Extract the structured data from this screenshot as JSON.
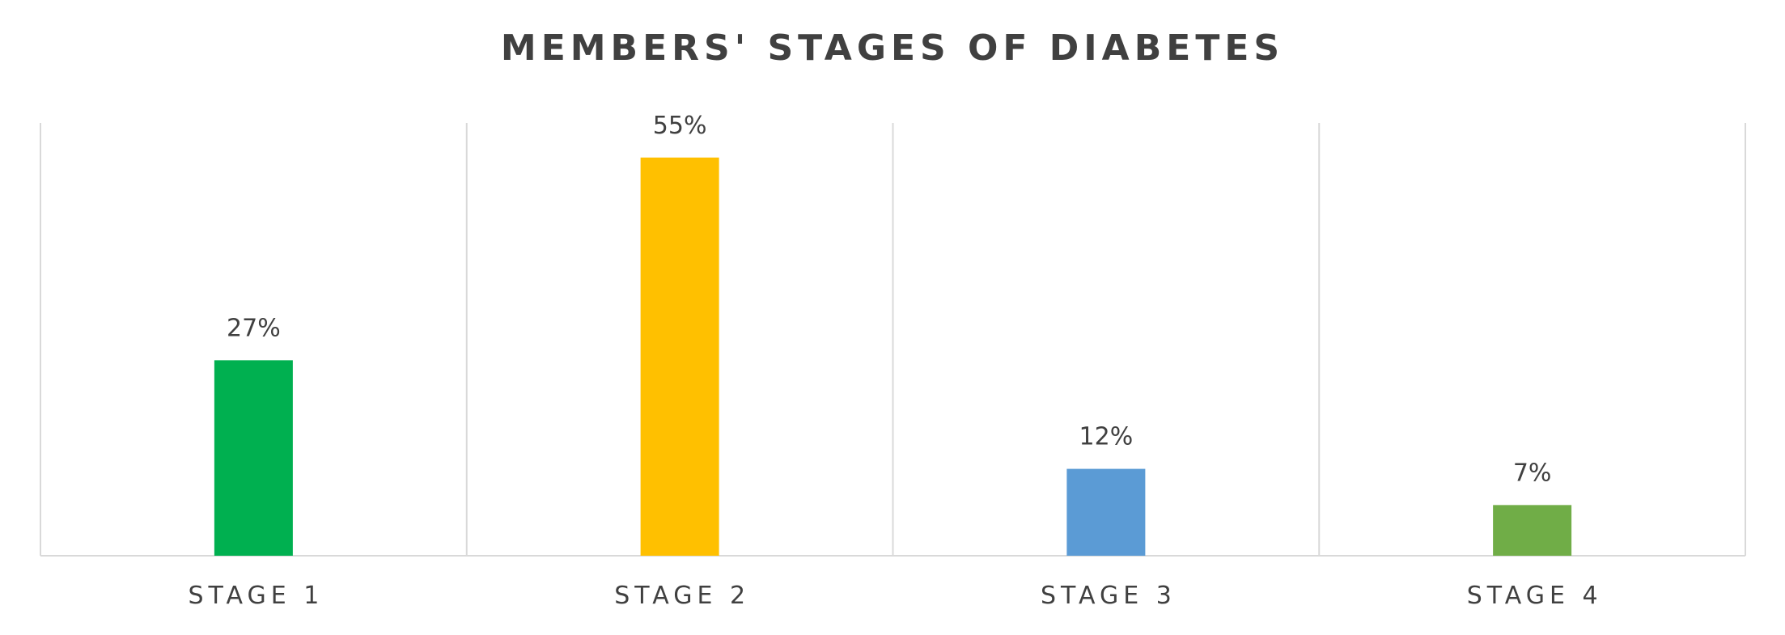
{
  "chart_data": {
    "type": "bar",
    "title": "MEMBERS' STAGES OF DIABETES",
    "xlabel": "",
    "ylabel": "",
    "ylim": [
      0,
      60
    ],
    "grid": false,
    "legend": "none",
    "value_suffix": "%",
    "categories": [
      "STAGE 1",
      "STAGE 2",
      "STAGE 3",
      "STAGE 4"
    ],
    "values": [
      27,
      55,
      12,
      7
    ],
    "data_labels": [
      "27%",
      "55%",
      "12%",
      "7%"
    ],
    "colors": [
      "#00B050",
      "#FFC000",
      "#5B9BD5",
      "#70AD47"
    ],
    "axis_color": "#D9D9D9",
    "text_color": "#404040"
  }
}
